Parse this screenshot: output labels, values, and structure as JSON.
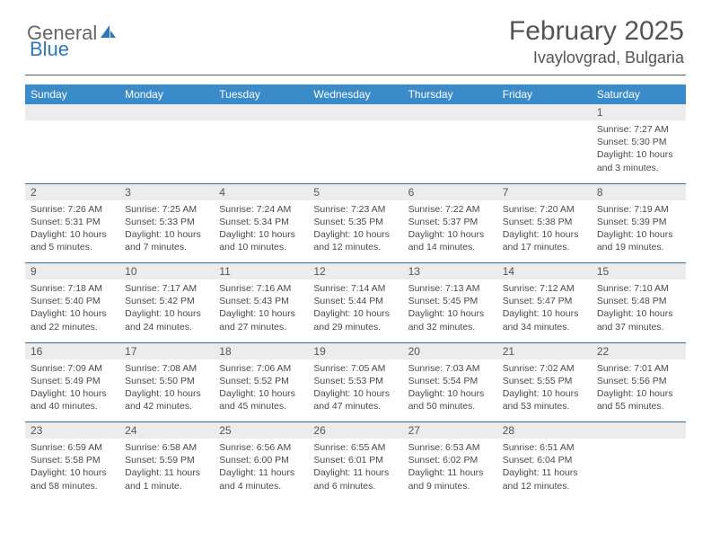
{
  "brand": {
    "part1": "General",
    "part2": "Blue"
  },
  "title": "February 2025",
  "location": "Ivaylovgrad, Bulgaria",
  "colors": {
    "header_bg": "#3b8bc9",
    "header_text": "#ffffff",
    "daynum_bg": "#ececec",
    "row_divider": "#2e6da4",
    "body_text": "#4a4a4a",
    "brand_gray": "#666666",
    "brand_blue": "#2e77b8"
  },
  "weekdays": [
    "Sunday",
    "Monday",
    "Tuesday",
    "Wednesday",
    "Thursday",
    "Friday",
    "Saturday"
  ],
  "weeks": [
    {
      "nums": [
        "",
        "",
        "",
        "",
        "",
        "",
        "1"
      ],
      "cells": [
        null,
        null,
        null,
        null,
        null,
        null,
        {
          "sunrise": "Sunrise: 7:27 AM",
          "sunset": "Sunset: 5:30 PM",
          "day1": "Daylight: 10 hours",
          "day2": "and 3 minutes."
        }
      ]
    },
    {
      "nums": [
        "2",
        "3",
        "4",
        "5",
        "6",
        "7",
        "8"
      ],
      "cells": [
        {
          "sunrise": "Sunrise: 7:26 AM",
          "sunset": "Sunset: 5:31 PM",
          "day1": "Daylight: 10 hours",
          "day2": "and 5 minutes."
        },
        {
          "sunrise": "Sunrise: 7:25 AM",
          "sunset": "Sunset: 5:33 PM",
          "day1": "Daylight: 10 hours",
          "day2": "and 7 minutes."
        },
        {
          "sunrise": "Sunrise: 7:24 AM",
          "sunset": "Sunset: 5:34 PM",
          "day1": "Daylight: 10 hours",
          "day2": "and 10 minutes."
        },
        {
          "sunrise": "Sunrise: 7:23 AM",
          "sunset": "Sunset: 5:35 PM",
          "day1": "Daylight: 10 hours",
          "day2": "and 12 minutes."
        },
        {
          "sunrise": "Sunrise: 7:22 AM",
          "sunset": "Sunset: 5:37 PM",
          "day1": "Daylight: 10 hours",
          "day2": "and 14 minutes."
        },
        {
          "sunrise": "Sunrise: 7:20 AM",
          "sunset": "Sunset: 5:38 PM",
          "day1": "Daylight: 10 hours",
          "day2": "and 17 minutes."
        },
        {
          "sunrise": "Sunrise: 7:19 AM",
          "sunset": "Sunset: 5:39 PM",
          "day1": "Daylight: 10 hours",
          "day2": "and 19 minutes."
        }
      ]
    },
    {
      "nums": [
        "9",
        "10",
        "11",
        "12",
        "13",
        "14",
        "15"
      ],
      "cells": [
        {
          "sunrise": "Sunrise: 7:18 AM",
          "sunset": "Sunset: 5:40 PM",
          "day1": "Daylight: 10 hours",
          "day2": "and 22 minutes."
        },
        {
          "sunrise": "Sunrise: 7:17 AM",
          "sunset": "Sunset: 5:42 PM",
          "day1": "Daylight: 10 hours",
          "day2": "and 24 minutes."
        },
        {
          "sunrise": "Sunrise: 7:16 AM",
          "sunset": "Sunset: 5:43 PM",
          "day1": "Daylight: 10 hours",
          "day2": "and 27 minutes."
        },
        {
          "sunrise": "Sunrise: 7:14 AM",
          "sunset": "Sunset: 5:44 PM",
          "day1": "Daylight: 10 hours",
          "day2": "and 29 minutes."
        },
        {
          "sunrise": "Sunrise: 7:13 AM",
          "sunset": "Sunset: 5:45 PM",
          "day1": "Daylight: 10 hours",
          "day2": "and 32 minutes."
        },
        {
          "sunrise": "Sunrise: 7:12 AM",
          "sunset": "Sunset: 5:47 PM",
          "day1": "Daylight: 10 hours",
          "day2": "and 34 minutes."
        },
        {
          "sunrise": "Sunrise: 7:10 AM",
          "sunset": "Sunset: 5:48 PM",
          "day1": "Daylight: 10 hours",
          "day2": "and 37 minutes."
        }
      ]
    },
    {
      "nums": [
        "16",
        "17",
        "18",
        "19",
        "20",
        "21",
        "22"
      ],
      "cells": [
        {
          "sunrise": "Sunrise: 7:09 AM",
          "sunset": "Sunset: 5:49 PM",
          "day1": "Daylight: 10 hours",
          "day2": "and 40 minutes."
        },
        {
          "sunrise": "Sunrise: 7:08 AM",
          "sunset": "Sunset: 5:50 PM",
          "day1": "Daylight: 10 hours",
          "day2": "and 42 minutes."
        },
        {
          "sunrise": "Sunrise: 7:06 AM",
          "sunset": "Sunset: 5:52 PM",
          "day1": "Daylight: 10 hours",
          "day2": "and 45 minutes."
        },
        {
          "sunrise": "Sunrise: 7:05 AM",
          "sunset": "Sunset: 5:53 PM",
          "day1": "Daylight: 10 hours",
          "day2": "and 47 minutes."
        },
        {
          "sunrise": "Sunrise: 7:03 AM",
          "sunset": "Sunset: 5:54 PM",
          "day1": "Daylight: 10 hours",
          "day2": "and 50 minutes."
        },
        {
          "sunrise": "Sunrise: 7:02 AM",
          "sunset": "Sunset: 5:55 PM",
          "day1": "Daylight: 10 hours",
          "day2": "and 53 minutes."
        },
        {
          "sunrise": "Sunrise: 7:01 AM",
          "sunset": "Sunset: 5:56 PM",
          "day1": "Daylight: 10 hours",
          "day2": "and 55 minutes."
        }
      ]
    },
    {
      "nums": [
        "23",
        "24",
        "25",
        "26",
        "27",
        "28",
        ""
      ],
      "cells": [
        {
          "sunrise": "Sunrise: 6:59 AM",
          "sunset": "Sunset: 5:58 PM",
          "day1": "Daylight: 10 hours",
          "day2": "and 58 minutes."
        },
        {
          "sunrise": "Sunrise: 6:58 AM",
          "sunset": "Sunset: 5:59 PM",
          "day1": "Daylight: 11 hours",
          "day2": "and 1 minute."
        },
        {
          "sunrise": "Sunrise: 6:56 AM",
          "sunset": "Sunset: 6:00 PM",
          "day1": "Daylight: 11 hours",
          "day2": "and 4 minutes."
        },
        {
          "sunrise": "Sunrise: 6:55 AM",
          "sunset": "Sunset: 6:01 PM",
          "day1": "Daylight: 11 hours",
          "day2": "and 6 minutes."
        },
        {
          "sunrise": "Sunrise: 6:53 AM",
          "sunset": "Sunset: 6:02 PM",
          "day1": "Daylight: 11 hours",
          "day2": "and 9 minutes."
        },
        {
          "sunrise": "Sunrise: 6:51 AM",
          "sunset": "Sunset: 6:04 PM",
          "day1": "Daylight: 11 hours",
          "day2": "and 12 minutes."
        },
        null
      ]
    }
  ]
}
